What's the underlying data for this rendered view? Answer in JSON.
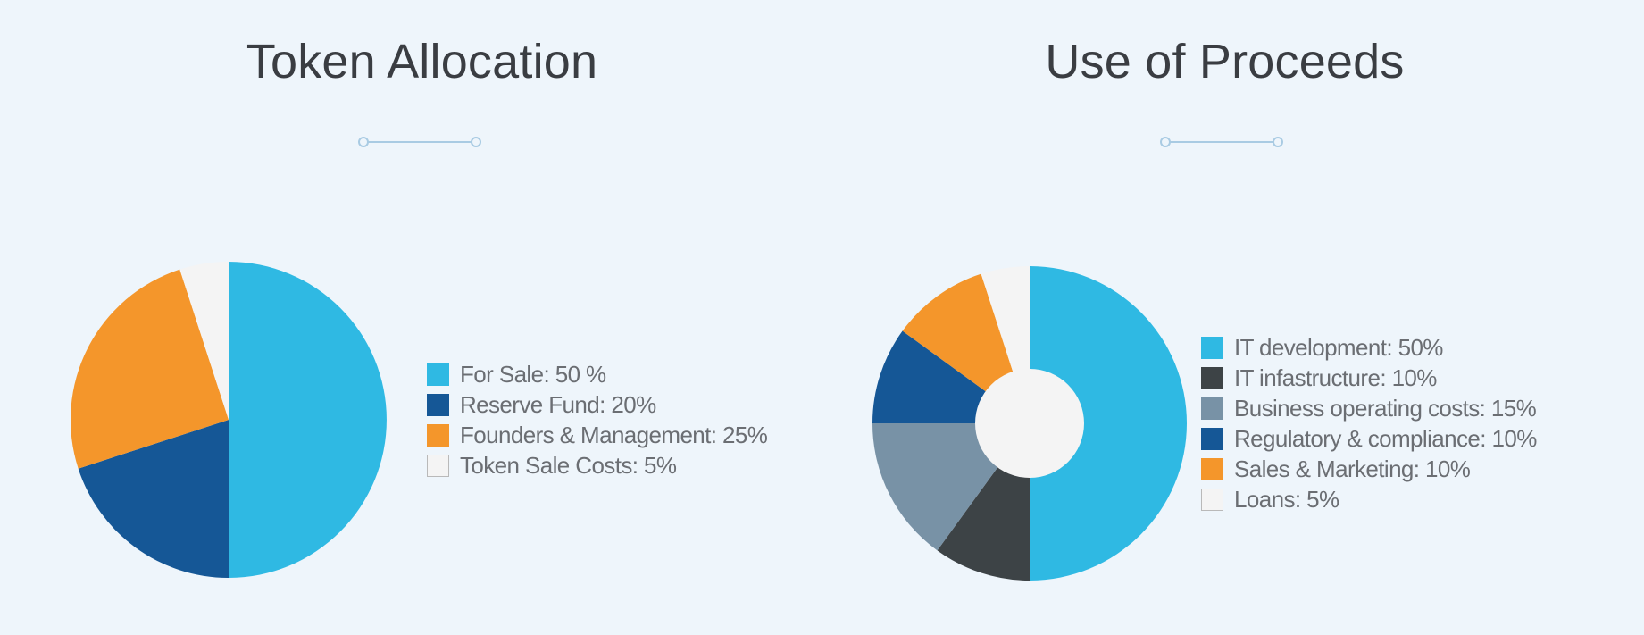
{
  "chart_data": [
    {
      "type": "pie",
      "title": "Token Allocation",
      "series": [
        {
          "label": "For Sale: 50 %",
          "value": 50,
          "color": "#2fb9e3"
        },
        {
          "label": "Reserve Fund: 20%",
          "value": 20,
          "color": "#155796"
        },
        {
          "label": "Founders & Management: 25%",
          "value": 25,
          "color": "#f4962b"
        },
        {
          "label": "Token Sale Costs: 5%",
          "value": 5,
          "color": "#f4f4f4"
        }
      ],
      "legend_position": "right"
    },
    {
      "type": "donut",
      "title": "Use of Proceeds",
      "series": [
        {
          "label": "IT development: 50%",
          "value": 50,
          "color": "#2fb9e3"
        },
        {
          "label": "IT infastructure: 10%",
          "value": 10,
          "color": "#3d4346"
        },
        {
          "label": "Business operating costs: 15%",
          "value": 15,
          "color": "#7892a6"
        },
        {
          "label": "Regulatory & compliance: 10%",
          "value": 10,
          "color": "#155796"
        },
        {
          "label": "Sales & Marketing: 10%",
          "value": 10,
          "color": "#f4962b"
        },
        {
          "label": "Loans: 5%",
          "value": 5,
          "color": "#f4f4f4"
        }
      ],
      "legend_position": "right"
    }
  ],
  "colors": {
    "background": "#eef5fb",
    "divider": "#a9cbe3",
    "title": "#3a3d42",
    "legend_text": "#6b6e73"
  }
}
